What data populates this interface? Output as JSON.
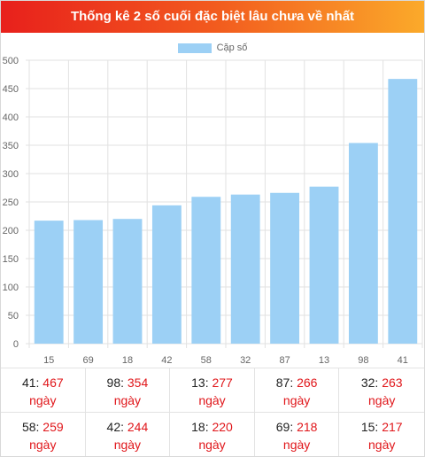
{
  "title": "Thống kê 2 số cuối đặc biệt lâu chưa về nhất",
  "chart_data": {
    "type": "bar",
    "categories": [
      "15",
      "69",
      "18",
      "42",
      "58",
      "32",
      "87",
      "13",
      "98",
      "41"
    ],
    "series": [
      {
        "name": "Cặp số",
        "values": [
          217,
          218,
          220,
          244,
          259,
          263,
          266,
          277,
          354,
          467
        ],
        "color": "#9cd0f5"
      }
    ],
    "ylim": [
      0,
      500
    ],
    "yticks": [
      "0",
      "50",
      "100",
      "150",
      "200",
      "250",
      "300",
      "350",
      "400",
      "450",
      "500"
    ],
    "grid": true,
    "legend": "top-center"
  },
  "stats": [
    {
      "pair": "41",
      "days": "467",
      "unit": "ngày"
    },
    {
      "pair": "98",
      "days": "354",
      "unit": "ngày"
    },
    {
      "pair": "13",
      "days": "277",
      "unit": "ngày"
    },
    {
      "pair": "87",
      "days": "266",
      "unit": "ngày"
    },
    {
      "pair": "32",
      "days": "263",
      "unit": "ngày"
    },
    {
      "pair": "58",
      "days": "259",
      "unit": "ngày"
    },
    {
      "pair": "42",
      "days": "244",
      "unit": "ngày"
    },
    {
      "pair": "18",
      "days": "220",
      "unit": "ngày"
    },
    {
      "pair": "69",
      "days": "218",
      "unit": "ngày"
    },
    {
      "pair": "15",
      "days": "217",
      "unit": "ngày"
    }
  ]
}
